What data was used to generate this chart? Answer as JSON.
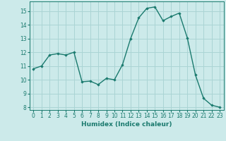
{
  "x": [
    0,
    1,
    2,
    3,
    4,
    5,
    6,
    7,
    8,
    9,
    10,
    11,
    12,
    13,
    14,
    15,
    16,
    17,
    18,
    19,
    20,
    21,
    22,
    23
  ],
  "y": [
    10.8,
    11.0,
    11.8,
    11.9,
    11.8,
    12.0,
    9.85,
    9.9,
    9.65,
    10.1,
    10.0,
    11.1,
    13.0,
    14.5,
    15.2,
    15.3,
    14.3,
    14.6,
    14.85,
    13.05,
    10.35,
    8.65,
    8.15,
    8.0
  ],
  "line_color": "#1a7a6e",
  "marker": "D",
  "marker_size": 1.8,
  "bg_color": "#cceaea",
  "grid_color": "#aad4d4",
  "xlabel": "Humidex (Indice chaleur)",
  "xlim": [
    -0.5,
    23.5
  ],
  "ylim": [
    7.8,
    15.7
  ],
  "yticks": [
    8,
    9,
    10,
    11,
    12,
    13,
    14,
    15
  ],
  "xticks": [
    0,
    1,
    2,
    3,
    4,
    5,
    6,
    7,
    8,
    9,
    10,
    11,
    12,
    13,
    14,
    15,
    16,
    17,
    18,
    19,
    20,
    21,
    22,
    23
  ],
  "tick_label_size": 5.5,
  "xlabel_size": 6.5,
  "line_width": 1.0,
  "axis_color": "#1a7a6e",
  "tick_color": "#1a7a6e"
}
